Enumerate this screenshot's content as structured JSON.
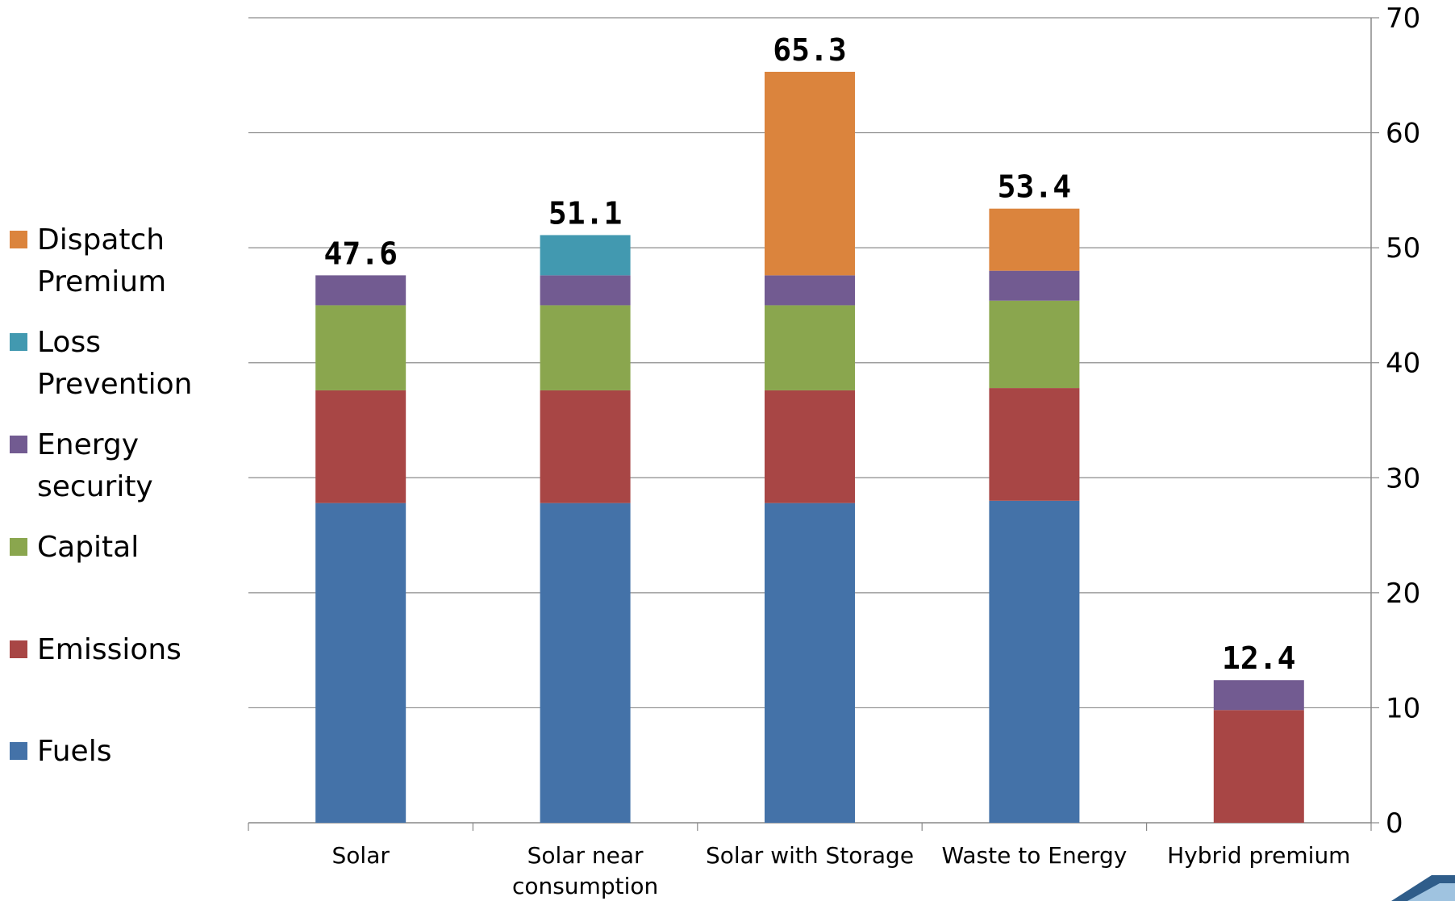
{
  "chart_data": {
    "type": "bar",
    "stacked": true,
    "categories": [
      "Solar",
      "Solar near consumption",
      "Solar with Storage",
      "Waste to Energy",
      "Hybrid premium"
    ],
    "category_label_lines": [
      [
        "Solar"
      ],
      [
        "Solar near",
        "consumption"
      ],
      [
        "Solar with Storage"
      ],
      [
        "Waste to Energy"
      ],
      [
        "Hybrid premium"
      ]
    ],
    "series": [
      {
        "name": "Fuels",
        "color": "#4472A8",
        "values": [
          27.8,
          27.8,
          27.8,
          28.0,
          0
        ]
      },
      {
        "name": "Emissions",
        "color": "#A84645",
        "values": [
          9.8,
          9.8,
          9.8,
          9.8,
          9.8
        ]
      },
      {
        "name": "Capital",
        "color": "#8AA64E",
        "values": [
          7.4,
          7.4,
          7.4,
          7.6,
          0
        ]
      },
      {
        "name": "Energy security",
        "color": "#725B91",
        "values": [
          2.6,
          2.6,
          2.6,
          2.6,
          2.6
        ]
      },
      {
        "name": "Loss Prevention",
        "color": "#4299B0",
        "values": [
          0,
          3.5,
          0,
          0,
          0
        ]
      },
      {
        "name": "Dispatch Premium",
        "color": "#DB843D",
        "values": [
          0,
          0,
          17.7,
          5.4,
          0
        ]
      }
    ],
    "totals": [
      "47.6",
      "51.1",
      "65.3",
      "53.4",
      "12.4"
    ],
    "ylim": [
      0,
      70
    ],
    "yticks": [
      0,
      10,
      20,
      30,
      40,
      50,
      60,
      70
    ],
    "y_axis_side": "right",
    "grid": true,
    "legend_placement": "left",
    "legend": [
      {
        "series": "Dispatch Premium",
        "lines": [
          "Dispatch",
          "Premium"
        ]
      },
      {
        "series": "Loss Prevention",
        "lines": [
          "Loss",
          "Prevention"
        ]
      },
      {
        "series": "Energy security",
        "lines": [
          "Energy",
          "security"
        ]
      },
      {
        "series": "Capital",
        "lines": [
          "Capital"
        ]
      },
      {
        "series": "Emissions",
        "lines": [
          "Emissions"
        ]
      },
      {
        "series": "Fuels",
        "lines": [
          "Fuels"
        ]
      }
    ],
    "title": "",
    "xlabel": "",
    "ylabel": ""
  }
}
